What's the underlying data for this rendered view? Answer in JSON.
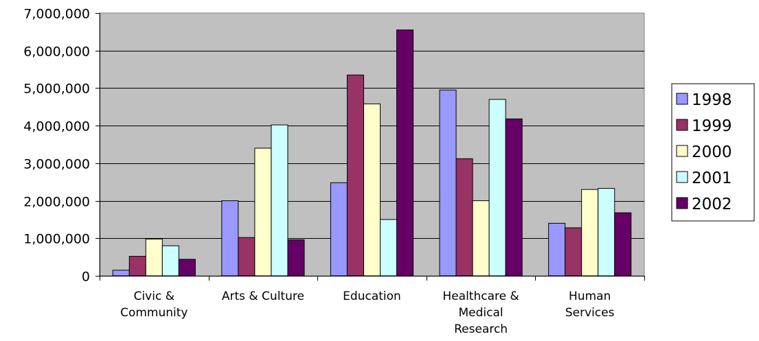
{
  "chart_data": {
    "type": "bar",
    "title": "",
    "xlabel": "",
    "ylabel": "",
    "ylim": [
      0,
      7000000
    ],
    "yticks": [
      0,
      1000000,
      2000000,
      3000000,
      4000000,
      5000000,
      6000000,
      7000000
    ],
    "ytick_labels": [
      "0",
      "1,000,000",
      "2,000,000",
      "3,000,000",
      "4,000,000",
      "5,000,000",
      "6,000,000",
      "7,000,000"
    ],
    "grid": true,
    "legend_position": "right",
    "categories": [
      [
        "Civic &",
        "Community"
      ],
      [
        "Arts & Culture"
      ],
      [
        "Education"
      ],
      [
        "Healthcare &",
        "Medical",
        "Research"
      ],
      [
        "Human",
        "Services"
      ]
    ],
    "series": [
      {
        "name": "1998",
        "color": "#9999ff",
        "values": [
          150000,
          2000000,
          2480000,
          4950000,
          1400000
        ]
      },
      {
        "name": "1999",
        "color": "#993366",
        "values": [
          520000,
          1020000,
          5350000,
          3120000,
          1280000
        ]
      },
      {
        "name": "2000",
        "color": "#ffffcc",
        "values": [
          980000,
          3400000,
          4580000,
          2000000,
          2300000
        ]
      },
      {
        "name": "2001",
        "color": "#ccffff",
        "values": [
          800000,
          4020000,
          1500000,
          4700000,
          2330000
        ]
      },
      {
        "name": "2002",
        "color": "#660066",
        "values": [
          440000,
          960000,
          6550000,
          4180000,
          1680000
        ]
      }
    ],
    "plot_background": "#c0c0c0"
  }
}
